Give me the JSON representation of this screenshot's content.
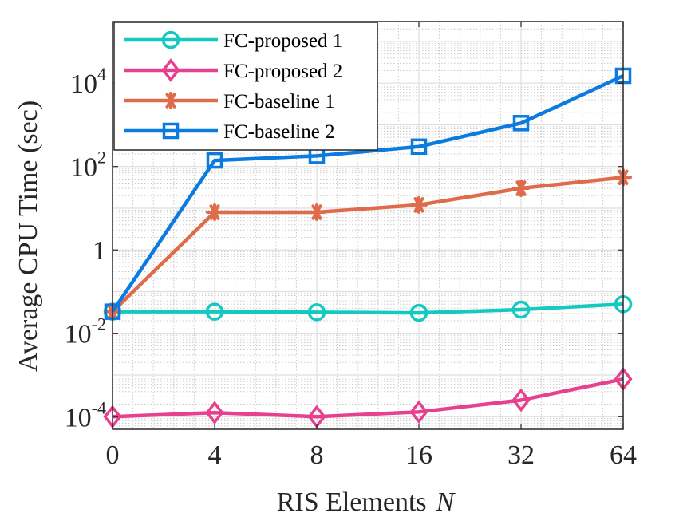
{
  "chart_data": {
    "type": "line",
    "xlabel": "RIS Elements",
    "xlabel_var": "N",
    "ylabel": "Average CPU Time (sec)",
    "y_scale": "log",
    "ylim": [
      5e-05,
      300000
    ],
    "x": [
      "0",
      "4",
      "8",
      "16",
      "32",
      "64"
    ],
    "grid": true,
    "minor_grid": true,
    "legend_position": "top-left",
    "y_ticks": [
      {
        "value": 0.0001,
        "base": "10",
        "exp": "-4"
      },
      {
        "value": 0.01,
        "base": "10",
        "exp": "-2"
      },
      {
        "value": 1,
        "base": "1",
        "exp": ""
      },
      {
        "value": 100,
        "base": "10",
        "exp": "2"
      },
      {
        "value": 10000,
        "base": "10",
        "exp": "4"
      }
    ],
    "series": [
      {
        "name": "FC-proposed 1",
        "color": "#13C9C0",
        "marker": "circle",
        "values": [
          0.033,
          0.033,
          0.032,
          0.031,
          0.037,
          0.05
        ]
      },
      {
        "name": "FC-proposed 2",
        "color": "#E5418F",
        "marker": "diamond",
        "values": [
          0.0001,
          0.000125,
          0.0001,
          0.00013,
          0.00025,
          0.0008
        ]
      },
      {
        "name": "FC-baseline 1",
        "color": "#E06B4A",
        "marker": "asterisk",
        "values": [
          0.033,
          8,
          8,
          12,
          30,
          55
        ]
      },
      {
        "name": "FC-baseline 2",
        "color": "#0B7BE0",
        "marker": "square",
        "values": [
          0.033,
          140,
          180,
          300,
          1100,
          15000
        ]
      }
    ]
  }
}
